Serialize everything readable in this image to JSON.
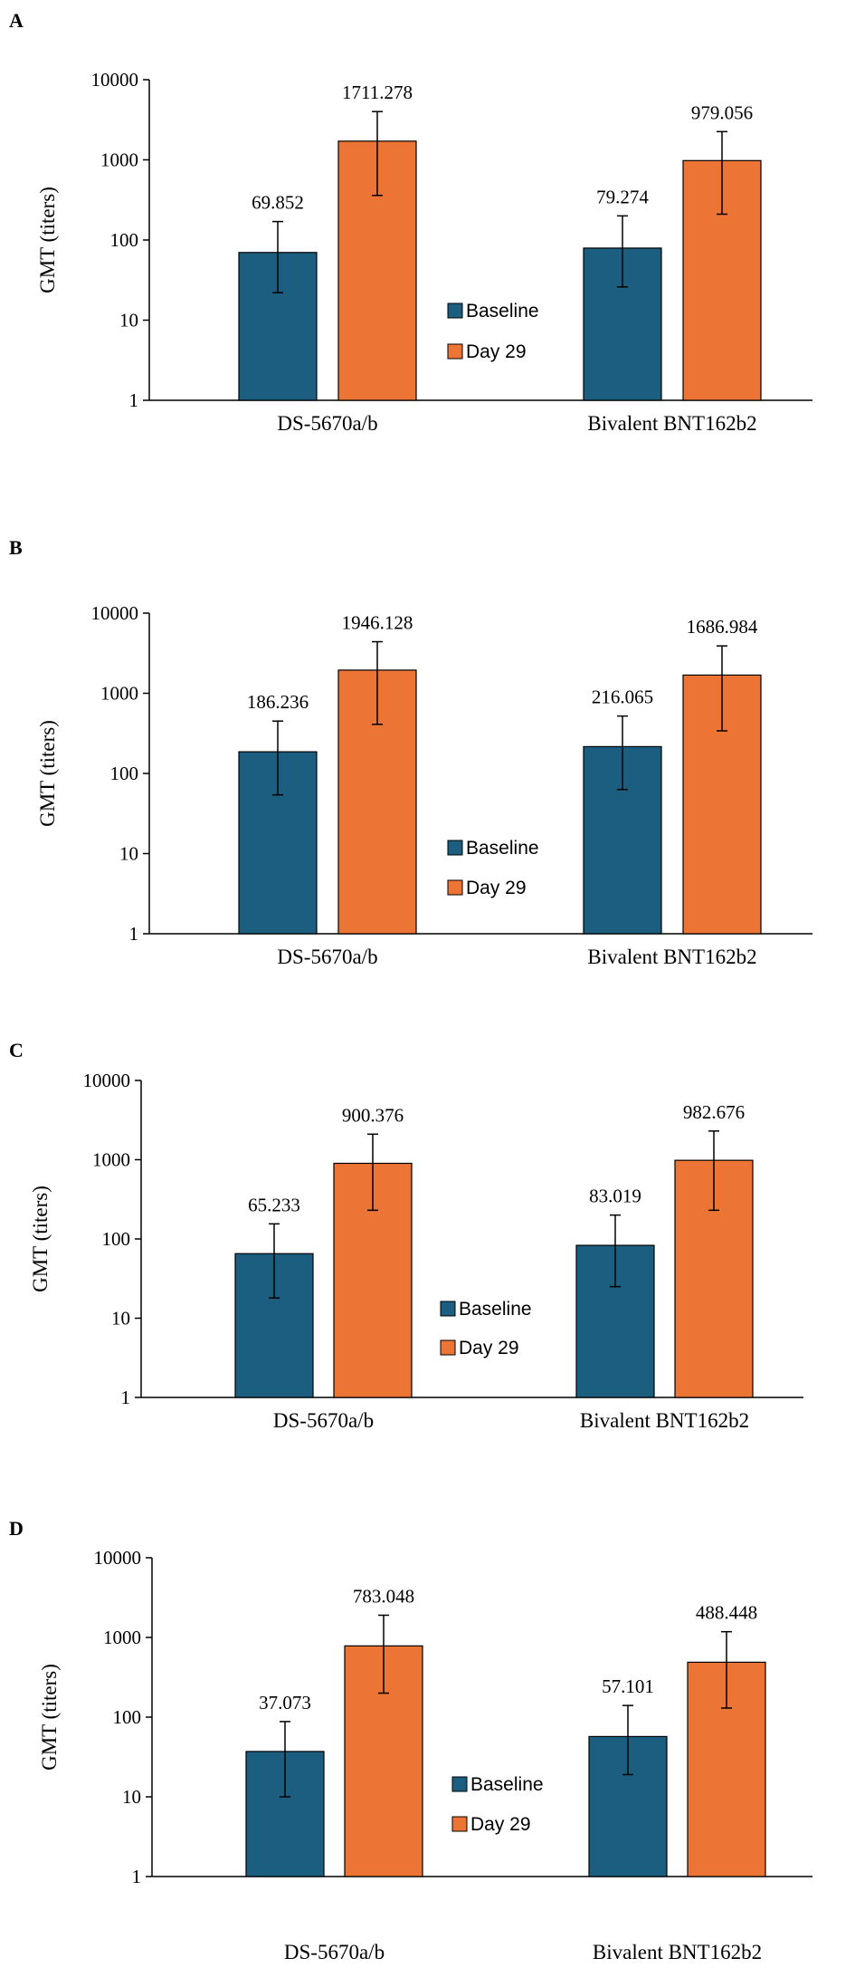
{
  "colors": {
    "baseline": "#1b5e80",
    "day29": "#ec7535"
  },
  "chart_data": [
    {
      "panel": "A",
      "type": "bar",
      "scale": "log",
      "ylabel": "GMT (titers)",
      "ylim": [
        1,
        10000
      ],
      "yticks": [
        "1",
        "10",
        "100",
        "1000",
        "10000"
      ],
      "categories": [
        "DS-5670a/b",
        "Bivalent BNT162b2"
      ],
      "legend": [
        "Baseline",
        "Day 29"
      ],
      "series": [
        {
          "name": "Baseline",
          "values": [
            69.852,
            79.274
          ],
          "labels": [
            "69.852",
            "79.274"
          ],
          "err_low": [
            22,
            26
          ],
          "err_high": [
            170,
            200
          ]
        },
        {
          "name": "Day 29",
          "values": [
            1711.278,
            979.056
          ],
          "labels": [
            "1711.278",
            "979.056"
          ],
          "err_low": [
            360,
            210
          ],
          "err_high": [
            4000,
            2250
          ]
        }
      ]
    },
    {
      "panel": "B",
      "type": "bar",
      "scale": "log",
      "ylabel": "GMT (titers)",
      "ylim": [
        1,
        10000
      ],
      "yticks": [
        "1",
        "10",
        "100",
        "1000",
        "10000"
      ],
      "categories": [
        "DS-5670a/b",
        "Bivalent BNT162b2"
      ],
      "legend": [
        "Baseline",
        "Day 29"
      ],
      "series": [
        {
          "name": "Baseline",
          "values": [
            186.236,
            216.065
          ],
          "labels": [
            "186.236",
            "216.065"
          ],
          "err_low": [
            54,
            63
          ],
          "err_high": [
            450,
            520
          ]
        },
        {
          "name": "Day 29",
          "values": [
            1946.128,
            1686.984
          ],
          "labels": [
            "1946.128",
            "1686.984"
          ],
          "err_low": [
            410,
            340
          ],
          "err_high": [
            4400,
            3900
          ]
        }
      ]
    },
    {
      "panel": "C",
      "type": "bar",
      "scale": "log",
      "ylabel": "GMT (titers)",
      "ylim": [
        1,
        10000
      ],
      "yticks": [
        "1",
        "10",
        "100",
        "1000",
        "10000"
      ],
      "categories": [
        "DS-5670a/b",
        "Bivalent BNT162b2"
      ],
      "legend": [
        "Baseline",
        "Day 29"
      ],
      "series": [
        {
          "name": "Baseline",
          "values": [
            65.233,
            83.019
          ],
          "labels": [
            "65.233",
            "83.019"
          ],
          "err_low": [
            18,
            25
          ],
          "err_high": [
            155,
            200
          ]
        },
        {
          "name": "Day 29",
          "values": [
            900.376,
            982.676
          ],
          "labels": [
            "900.376",
            "982.676"
          ],
          "err_low": [
            230,
            230
          ],
          "err_high": [
            2100,
            2300
          ]
        }
      ]
    },
    {
      "panel": "D",
      "type": "bar",
      "scale": "log",
      "ylabel": "GMT (titers)",
      "ylim": [
        1,
        10000
      ],
      "yticks": [
        "1",
        "10",
        "100",
        "1000",
        "10000"
      ],
      "categories": [
        "DS-5670a/b",
        "Bivalent BNT162b2"
      ],
      "legend": [
        "Baseline",
        "Day 29"
      ],
      "series": [
        {
          "name": "Baseline",
          "values": [
            37.073,
            57.101
          ],
          "labels": [
            "37.073",
            "57.101"
          ],
          "err_low": [
            10,
            19
          ],
          "err_high": [
            88,
            140
          ]
        },
        {
          "name": "Day 29",
          "values": [
            783.048,
            488.448
          ],
          "labels": [
            "783.048",
            "488.448"
          ],
          "err_low": [
            200,
            130
          ],
          "err_high": [
            1900,
            1180
          ]
        }
      ]
    }
  ]
}
